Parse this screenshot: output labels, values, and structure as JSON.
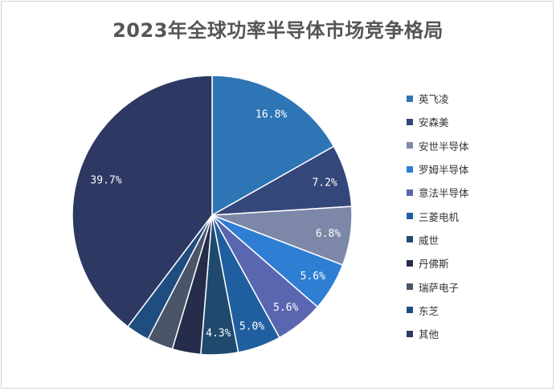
{
  "chart_data": {
    "type": "pie",
    "title": "2023年全球功率半导体市场竞争格局",
    "slices": [
      {
        "label": "英飞凌",
        "value": 16.8,
        "display": "16.8%",
        "color": "#2e75b6"
      },
      {
        "label": "安森美",
        "value": 7.2,
        "display": "7.2%",
        "color": "#34477a"
      },
      {
        "label": "安世半导体",
        "value": 6.8,
        "display": "6.8%",
        "color": "#7d88a8"
      },
      {
        "label": "罗姆半导体",
        "value": 5.6,
        "display": "5.6%",
        "color": "#2e7fd3"
      },
      {
        "label": "意法半导体",
        "value": 5.6,
        "display": "5.6%",
        "color": "#5a67b0"
      },
      {
        "label": "三菱电机",
        "value": 5.0,
        "display": "5.0%",
        "color": "#205f9f"
      },
      {
        "label": "威世",
        "value": 4.3,
        "display": "4.3%",
        "color": "#1f4a6e"
      },
      {
        "label": "丹佛斯",
        "value": 3.3,
        "display": "",
        "color": "#252d4a"
      },
      {
        "label": "瑞萨电子",
        "value": 3.0,
        "display": "",
        "color": "#4b5569"
      },
      {
        "label": "东芝",
        "value": 2.7,
        "display": "",
        "color": "#1f4d7f"
      },
      {
        "label": "其他",
        "value": 39.7,
        "display": "39.7%",
        "color": "#2d3963"
      }
    ],
    "legend_position": "right"
  }
}
